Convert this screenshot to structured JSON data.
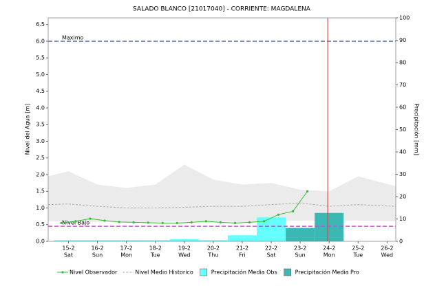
{
  "chart_data": {
    "type": "hydrograph",
    "title": "SALADO BLANCO [21017040] - CORRIENTE: MAGDALENA",
    "y_label": "Nivel del Agua [m]",
    "y2_label": "Precipitación [mm]",
    "categories": [
      "15-2",
      "16-2",
      "17-2",
      "18-2",
      "19-2",
      "20-2",
      "21-2",
      "22-2",
      "23-2",
      "24-2",
      "25-2",
      "26-2"
    ],
    "weekdays": [
      "Sat",
      "Sun",
      "Mon",
      "Tue",
      "Wed",
      "Thu",
      "Fri",
      "Sat",
      "Sun",
      "Mon",
      "Tue",
      "Wed"
    ],
    "xlim": [
      -0.7,
      11.3
    ],
    "ylim": [
      0,
      6.7
    ],
    "yticks": [
      {
        "value": 0,
        "label": "0.0"
      },
      0.5,
      {
        "value": 1,
        "label": "1.0"
      },
      1.5,
      {
        "value": 2,
        "label": "2.0"
      },
      2.5,
      {
        "value": 3,
        "label": "3.0"
      },
      3.5,
      {
        "value": 4,
        "label": "4.0"
      },
      4.5,
      {
        "value": 5,
        "label": "5.0"
      },
      5.5,
      {
        "value": 6,
        "label": "6.0"
      },
      6.5
    ],
    "y2lim": [
      0,
      100
    ],
    "y2ticks": [
      0,
      10,
      20,
      30,
      40,
      50,
      60,
      70,
      80,
      90,
      100
    ],
    "band": {
      "color": "#ebebeb",
      "x": [
        -0.7,
        0,
        1,
        2,
        3,
        4,
        5,
        6,
        7,
        8,
        9,
        10,
        11.3
      ],
      "upper": [
        1.95,
        2.1,
        1.7,
        1.6,
        1.7,
        2.3,
        1.85,
        1.7,
        1.75,
        1.55,
        1.5,
        1.95,
        1.65
      ],
      "lower": [
        0.6,
        0.6,
        0.58,
        0.58,
        0.58,
        0.6,
        0.6,
        0.58,
        0.6,
        0.62,
        0.62,
        0.62,
        0.6
      ]
    },
    "series": [
      {
        "name": "Nivel Observador",
        "kind": "line",
        "color": "#33bb33",
        "x": [
          -0.25,
          0.25,
          0.75,
          1.25,
          1.75,
          2.25,
          2.75,
          3.25,
          3.75,
          4.25,
          4.75,
          5.25,
          5.75,
          6.25,
          6.75,
          7.25,
          7.75,
          8.25
        ],
        "values": [
          0.55,
          0.6,
          0.68,
          0.62,
          0.58,
          0.57,
          0.56,
          0.55,
          0.55,
          0.57,
          0.6,
          0.57,
          0.55,
          0.57,
          0.6,
          0.8,
          0.9,
          1.5
        ]
      },
      {
        "name": "Nivel Medio Historico",
        "kind": "dashed",
        "color": "#aaaaaa",
        "x": [
          -0.7,
          0,
          1,
          2,
          3,
          4,
          5,
          6,
          7,
          8,
          9,
          10,
          11.3
        ],
        "values": [
          1.1,
          1.12,
          1.05,
          1.0,
          1.0,
          1.02,
          1.05,
          1.05,
          1.1,
          1.15,
          1.05,
          1.1,
          1.05
        ]
      },
      {
        "name": "Precipitación Media Obs",
        "kind": "bar",
        "axis": "y2",
        "color": "#66ffff",
        "values": [
          0.5,
          0.5,
          0.5,
          0.5,
          1.0,
          0.5,
          2.7,
          10.7,
          null,
          null,
          null,
          null
        ]
      },
      {
        "name": "Precipitación Media Pro",
        "kind": "bar",
        "axis": "y2",
        "color": "#3cb8b4",
        "values": [
          null,
          null,
          null,
          null,
          null,
          null,
          null,
          null,
          6,
          12.7,
          null,
          null
        ]
      }
    ],
    "reference_lines": [
      {
        "label": "Maximo",
        "value": 6.0,
        "color": "#5566aa"
      },
      {
        "label": "Nivel Bajo",
        "value": 0.45,
        "color": "#dd44dd"
      }
    ],
    "now_x": 8.95,
    "now_color": "#dd3333"
  }
}
